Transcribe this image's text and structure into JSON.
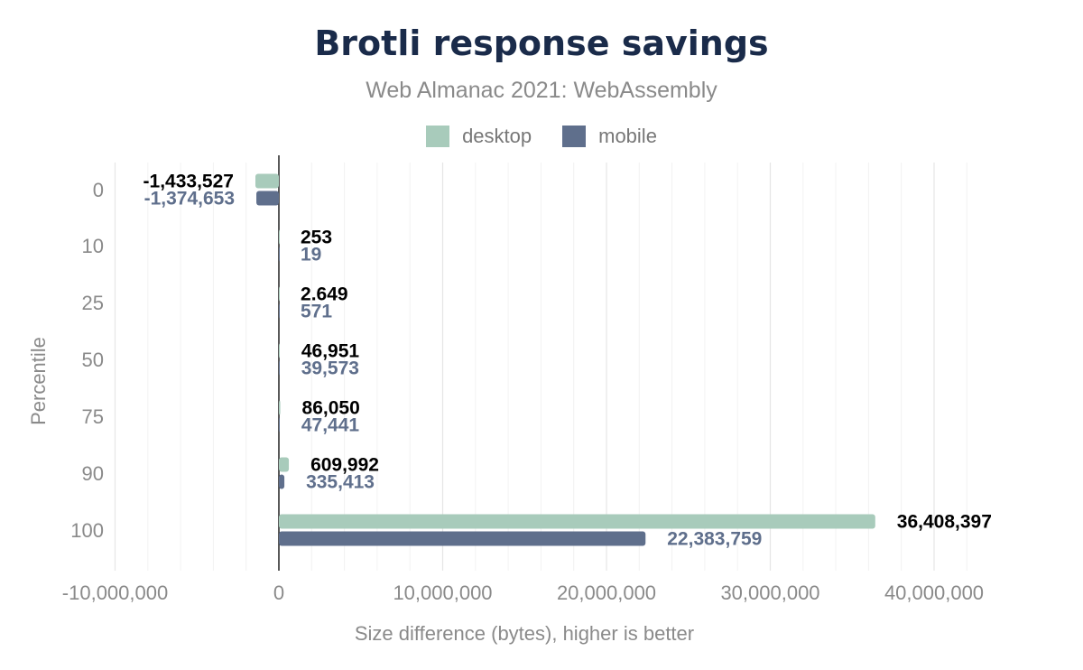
{
  "chart_data": {
    "type": "bar",
    "orientation": "horizontal",
    "title": "Brotli response savings",
    "subtitle": "Web Almanac 2021: WebAssembly",
    "xlabel": "Size difference (bytes), higher is better",
    "ylabel": "Percentile",
    "categories": [
      "0",
      "10",
      "25",
      "50",
      "75",
      "90",
      "100"
    ],
    "series": [
      {
        "name": "desktop",
        "color": "#a8cbbb",
        "label_color": "#000000",
        "values": [
          -1433527,
          253,
          2649,
          46951,
          86050,
          609992,
          36408397
        ],
        "labels": [
          "-1,433,527",
          "253",
          "2.649",
          "46,951",
          "86,050",
          "609,992",
          "36,408,397"
        ]
      },
      {
        "name": "mobile",
        "color": "#5f6f8c",
        "label_color": "#5f6f8c",
        "values": [
          -1374653,
          19,
          571,
          39573,
          47441,
          335413,
          22383759
        ],
        "labels": [
          "-1,374,653",
          "19",
          "571",
          "39,573",
          "47,441",
          "335,413",
          "22,383,759"
        ]
      }
    ],
    "xlim": [
      -10000000,
      45000000
    ],
    "xticks": [
      -10000000,
      0,
      10000000,
      20000000,
      30000000,
      40000000
    ],
    "xtick_labels": [
      "-10,000,000",
      "0",
      "10,000,000",
      "20,000,000",
      "30,000,000",
      "40,000,000"
    ],
    "grid": true,
    "legend_position": "top-center"
  }
}
